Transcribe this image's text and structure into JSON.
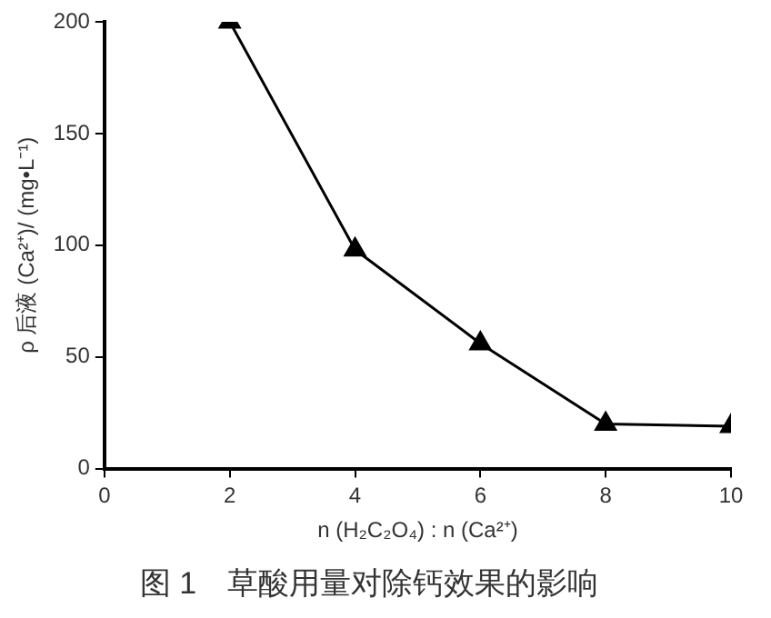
{
  "chart_data": {
    "type": "line",
    "title": "图 1　草酸用量对除钙效果的影响",
    "xlabel": "n (H₂C₂O₄) : n (Ca²⁺)",
    "ylabel": "ρ 后液 (Ca²⁺)/ (mg•L⁻¹)",
    "x": [
      2,
      4,
      6,
      8,
      10
    ],
    "series": [
      {
        "color": "#000000",
        "values": [
          200,
          98,
          56,
          20,
          19
        ]
      }
    ],
    "xlim": [
      0,
      10
    ],
    "xticks": [
      0,
      2,
      4,
      6,
      8,
      10
    ],
    "ylim": [
      0,
      200
    ],
    "yticks": [
      0,
      50,
      100,
      150,
      200
    ],
    "grid": false,
    "legend": false,
    "marker": "triangle",
    "line_style": "solid"
  }
}
